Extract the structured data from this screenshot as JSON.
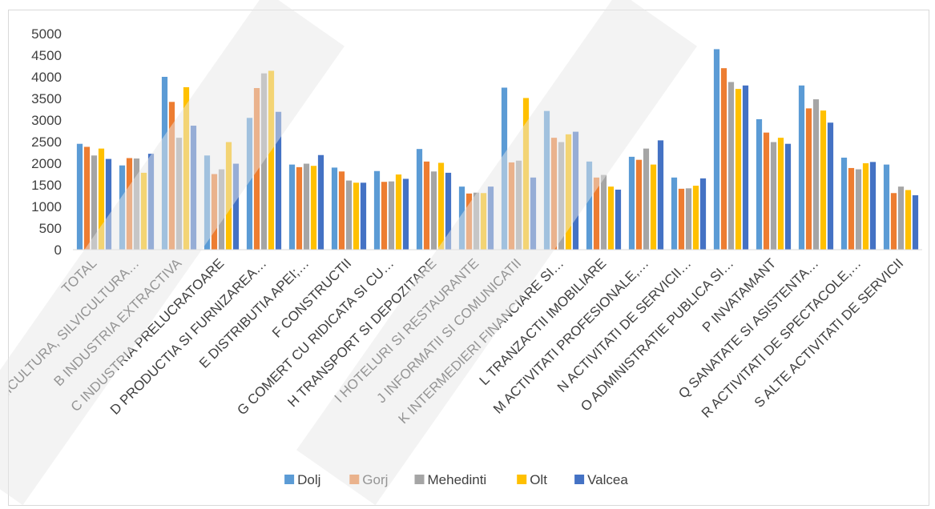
{
  "chart_data": {
    "type": "bar",
    "title": "",
    "xlabel": "",
    "ylabel": "",
    "ylim": [
      0,
      5000
    ],
    "yticks": [
      0,
      500,
      1000,
      1500,
      2000,
      2500,
      3000,
      3500,
      4000,
      4500,
      5000
    ],
    "grid": false,
    "legend_position": "bottom",
    "categories": [
      "TOTAL",
      "A AGRICULTURA, SILVICULTURA…",
      "B INDUSTRIA EXTRACTIVA",
      "C INDUSTRIA PRELUCRATOARE",
      "D PRODUCTIA SI FURNIZAREA…",
      "E DISTRIBUTIA APEI;…",
      "F CONSTRUCTII",
      "G COMERT CU RIDICATA SI CU…",
      "H TRANSPORT SI DEPOZITARE",
      "I HOTELURI SI RESTAURANTE",
      "J INFORMATII SI COMUNICATII",
      "K INTERMEDIERI FINANCIARE SI…",
      "L TRANZACTII IMOBILIARE",
      "M ACTIVITATI PROFESIONALE,…",
      "N ACTIVITATI DE SERVICII…",
      "O ADMINISTRATIE PUBLICA SI…",
      "P INVATAMANT",
      "Q SANATATE SI ASISTENTA…",
      "R ACTIVITATI DE SPECTACOLE,…",
      "S ALTE ACTIVITATI DE SERVICII"
    ],
    "series": [
      {
        "name": "Dolj",
        "color": "#5B9BD5",
        "values": [
          2450,
          1950,
          4000,
          2180,
          3050,
          1970,
          1900,
          1820,
          2330,
          1460,
          3750,
          3210,
          2040,
          2150,
          1670,
          4640,
          3020,
          3800,
          2130,
          1970
        ]
      },
      {
        "name": "Gorj",
        "color": "#ED7D31",
        "values": [
          2380,
          2120,
          3420,
          1750,
          3740,
          1910,
          1810,
          1570,
          2040,
          1300,
          2020,
          2590,
          1670,
          2080,
          1410,
          4200,
          2710,
          3270,
          1890,
          1310
        ]
      },
      {
        "name": "Mehedinti",
        "color": "#A5A5A5",
        "values": [
          2180,
          2110,
          2590,
          1860,
          4080,
          1990,
          1600,
          1580,
          1810,
          1320,
          2060,
          2490,
          1730,
          2340,
          1420,
          3880,
          2490,
          3480,
          1860,
          1460
        ]
      },
      {
        "name": "Olt",
        "color": "#FFC000",
        "values": [
          2340,
          1780,
          3760,
          2490,
          4140,
          1940,
          1550,
          1740,
          2010,
          1310,
          3510,
          2670,
          1460,
          1970,
          1480,
          3720,
          2590,
          3220,
          2000,
          1380
        ]
      },
      {
        "name": "Valcea",
        "color": "#4472C4",
        "values": [
          2100,
          2220,
          2870,
          1990,
          3190,
          2190,
          1550,
          1640,
          1780,
          1460,
          1670,
          2730,
          1390,
          2530,
          1650,
          3800,
          2450,
          2940,
          2030,
          1260
        ]
      }
    ]
  }
}
